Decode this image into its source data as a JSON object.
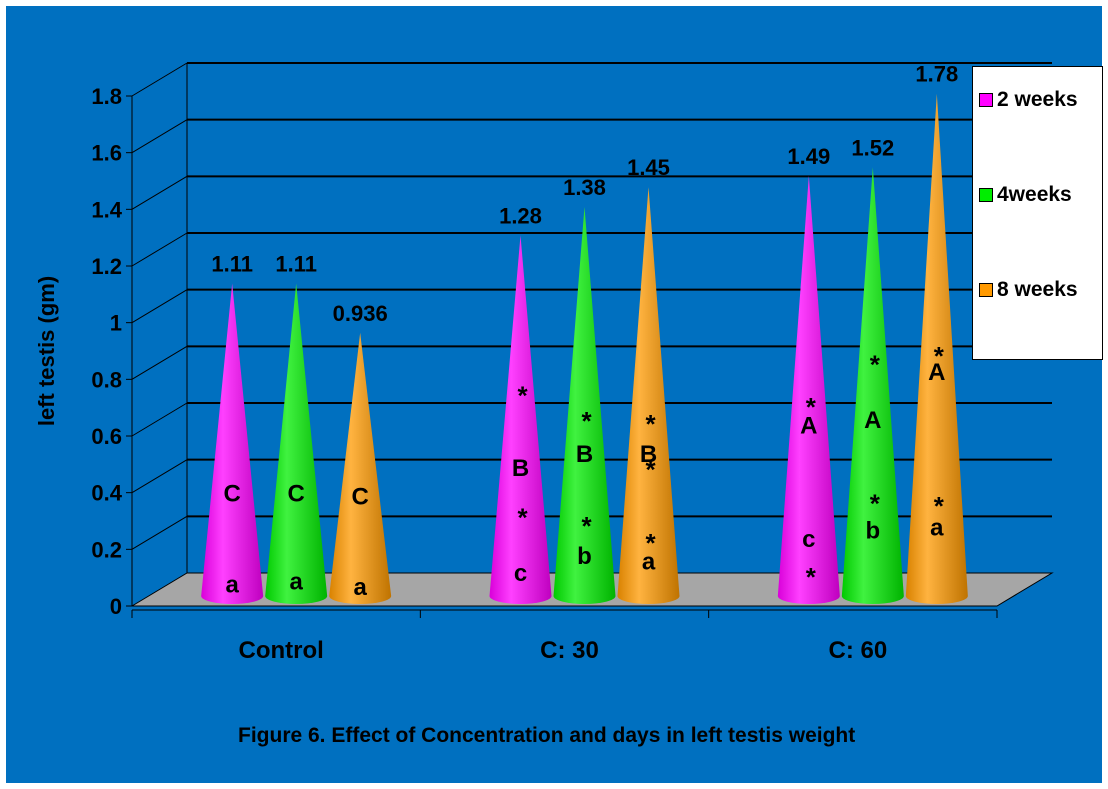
{
  "chart_data": {
    "type": "bar",
    "style": "3d-cone",
    "categories": [
      "Control",
      "C: 30",
      "C: 60"
    ],
    "series": [
      {
        "name": "2 weeks",
        "color": "#ff00ff",
        "values": [
          1.11,
          1.28,
          1.49
        ],
        "value_labels": [
          "1.11",
          "1.28",
          "1.49"
        ]
      },
      {
        "name": "4weeks",
        "color": "#00ee00",
        "values": [
          1.11,
          1.38,
          1.52
        ],
        "value_labels": [
          "1.11",
          "1.38",
          "1.52"
        ]
      },
      {
        "name": "8 weeks",
        "color": "#ff9900",
        "values": [
          0.936,
          1.45,
          1.78
        ],
        "value_labels": [
          "0.936",
          "1.45",
          "1.78"
        ]
      }
    ],
    "ylabel": "left testis (gm)",
    "xlabel": "",
    "ylim": [
      0,
      1.8
    ],
    "yticks": [
      "0",
      "0.2",
      "0.4",
      "0.6",
      "0.8",
      "1",
      "1.2",
      "1.4",
      "1.6",
      "1.8"
    ],
    "grid": true,
    "legend_position": "right",
    "annotations": [
      {
        "category": "Control",
        "series": "2 weeks",
        "marks": [
          {
            "text": "C",
            "at": 0.4
          },
          {
            "text": "a",
            "at": 0.08
          }
        ]
      },
      {
        "category": "Control",
        "series": "4weeks",
        "marks": [
          {
            "text": "C",
            "at": 0.4
          },
          {
            "text": "a",
            "at": 0.09
          }
        ]
      },
      {
        "category": "Control",
        "series": "8 weeks",
        "marks": [
          {
            "text": "C",
            "at": 0.39
          },
          {
            "text": "a",
            "at": 0.07
          }
        ]
      },
      {
        "category": "C: 30",
        "series": "2 weeks",
        "marks": [
          {
            "text": "*",
            "at": 0.76
          },
          {
            "text": "B",
            "at": 0.49
          },
          {
            "text": "*",
            "at": 0.33
          },
          {
            "text": "c",
            "at": 0.12
          }
        ]
      },
      {
        "category": "C: 30",
        "series": "4weeks",
        "marks": [
          {
            "text": "*",
            "at": 0.67
          },
          {
            "text": "B",
            "at": 0.54
          },
          {
            "text": "*",
            "at": 0.3
          },
          {
            "text": "b",
            "at": 0.18
          }
        ]
      },
      {
        "category": "C: 30",
        "series": "8 weeks",
        "marks": [
          {
            "text": "*",
            "at": 0.66
          },
          {
            "text": "B",
            "at": 0.54
          },
          {
            "text": "*",
            "at": 0.5
          },
          {
            "text": "*",
            "at": 0.24
          },
          {
            "text": "a",
            "at": 0.16
          }
        ]
      },
      {
        "category": "C: 60",
        "series": "2 weeks",
        "marks": [
          {
            "text": "*",
            "at": 0.72
          },
          {
            "text": "A",
            "at": 0.64
          },
          {
            "text": "c",
            "at": 0.24
          },
          {
            "text": "*",
            "at": 0.12
          }
        ]
      },
      {
        "category": "C: 60",
        "series": "4weeks",
        "marks": [
          {
            "text": "*",
            "at": 0.87
          },
          {
            "text": "A",
            "at": 0.66
          },
          {
            "text": "*",
            "at": 0.38
          },
          {
            "text": "b",
            "at": 0.27
          }
        ]
      },
      {
        "category": "C: 60",
        "series": "8 weeks",
        "marks": [
          {
            "text": "*",
            "at": 0.9
          },
          {
            "text": "A",
            "at": 0.83
          },
          {
            "text": "*",
            "at": 0.37
          },
          {
            "text": "a",
            "at": 0.28
          }
        ]
      }
    ]
  },
  "legend": {
    "items": [
      {
        "label": "2 weeks",
        "color": "#ff00ff"
      },
      {
        "label": "4weeks",
        "color": "#00ee00"
      },
      {
        "label": "8 weeks",
        "color": "#ff9900"
      }
    ]
  },
  "caption": "Figure 6. Effect of Concentration and days in left testis weight"
}
